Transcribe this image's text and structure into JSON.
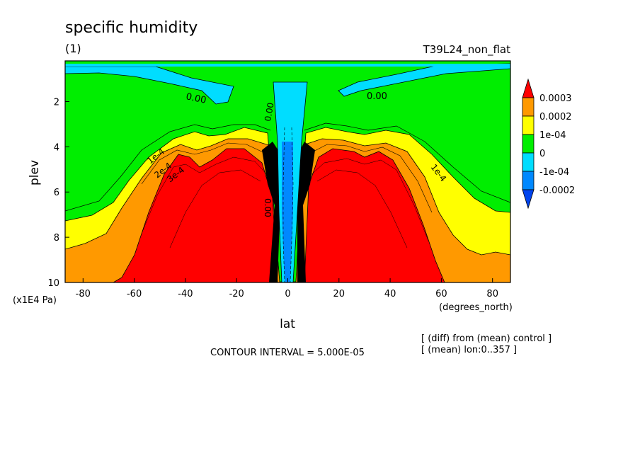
{
  "chart_data": {
    "type": "contour",
    "title": "specific humidity",
    "subtitle": "(1)",
    "run_label": "T39L24_non_flat",
    "xlabel": "lat",
    "xunit": "(degrees_north)",
    "ylabel": "plev",
    "yunit": "(x1E4 Pa)",
    "xlim": [
      -87,
      87
    ],
    "ylim": [
      10,
      0.2
    ],
    "x_ticks": [
      "-80",
      "-60",
      "-40",
      "-20",
      "0",
      "20",
      "40",
      "60",
      "80"
    ],
    "y_ticks": [
      "2",
      "4",
      "6",
      "8",
      "10"
    ],
    "contour_interval_text": "CONTOUR INTERVAL = 5.000E-05",
    "notes": [
      "[ (diff) from (mean) control ]",
      "[ (mean) lon:0..357 ]"
    ],
    "contour_labels": [
      "0.00",
      "0.00",
      "1e-4",
      "2e-4",
      "3e-4",
      "1e-4",
      "0.00",
      "0.00"
    ],
    "colorbar": {
      "labels": [
        "0.0003",
        "0.0002",
        "1e-04",
        "0",
        "-1e-04",
        "-0.0002"
      ],
      "colors": [
        "#ff0000",
        "#ff9900",
        "#ffff00",
        "#00ee00",
        "#00ddff",
        "#0088ff",
        "#0044ee"
      ]
    },
    "colors": {
      "red": "#ff0000",
      "orange": "#ff9900",
      "yellow": "#ffff00",
      "green": "#00ee00",
      "cyan": "#00ddff",
      "blue": "#0088ff"
    }
  }
}
